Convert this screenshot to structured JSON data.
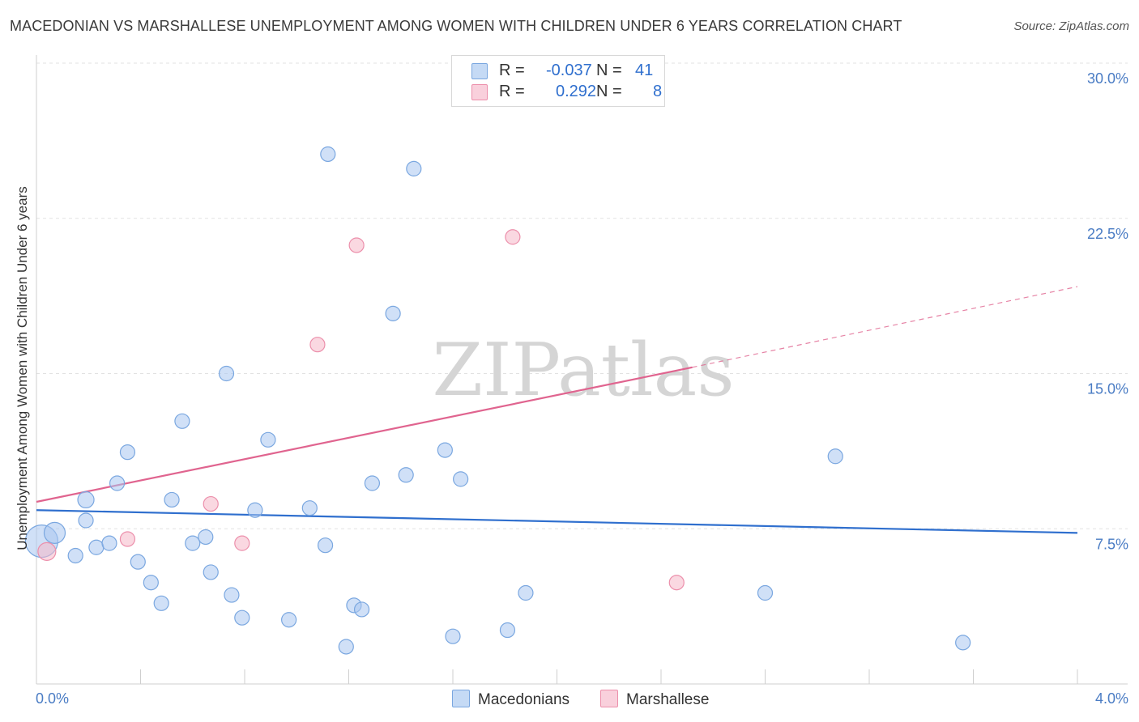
{
  "title": "MACEDONIAN VS MARSHALLESE UNEMPLOYMENT AMONG WOMEN WITH CHILDREN UNDER 6 YEARS CORRELATION CHART",
  "source": "Source: ZipAtlas.com",
  "watermark": "ZIPatlas",
  "legend": {
    "rows": [
      {
        "r_label": "R =",
        "r_value": "-0.037",
        "n_label": "N =",
        "n_value": "41",
        "color": "#a9c7f0"
      },
      {
        "r_label": "R =",
        "r_value": "0.292",
        "n_label": "N =",
        "n_value": "8",
        "color": "#f6b8c9"
      }
    ]
  },
  "bottom_legend": [
    {
      "label": "Macedonians",
      "color": "#a9c7f0"
    },
    {
      "label": "Marshallese",
      "color": "#f6b8c9"
    }
  ],
  "chart_data": {
    "type": "scatter",
    "title": "MACEDONIAN VS MARSHALLESE UNEMPLOYMENT AMONG WOMEN WITH CHILDREN UNDER 6 YEARS CORRELATION CHART",
    "xlabel": "",
    "ylabel": "Unemployment Among Women with Children Under 6 years",
    "xlim": [
      0,
      4.0
    ],
    "ylim": [
      0,
      30.0
    ],
    "x_ticks": [
      "0.0%",
      "4.0%"
    ],
    "y_ticks": [
      {
        "value": 7.5,
        "label": "7.5%"
      },
      {
        "value": 15.0,
        "label": "15.0%"
      },
      {
        "value": 22.5,
        "label": "22.5%"
      },
      {
        "value": 30.0,
        "label": "30.0%"
      }
    ],
    "grid": "horizontal-dashed",
    "series": [
      {
        "name": "Macedonians",
        "color": "#a9c7f0",
        "stroke": "#7aa7e0",
        "trend": {
          "x": [
            0.0,
            4.0
          ],
          "y": [
            8.4,
            7.3
          ],
          "color": "#2f6fce"
        },
        "points": [
          [
            0.02,
            6.9,
            20
          ],
          [
            0.07,
            7.3,
            13
          ],
          [
            0.19,
            8.9,
            10
          ],
          [
            0.15,
            6.2,
            9
          ],
          [
            0.19,
            7.9,
            9
          ],
          [
            0.23,
            6.6,
            9
          ],
          [
            0.28,
            6.8,
            9
          ],
          [
            0.31,
            9.7,
            9
          ],
          [
            0.35,
            11.2,
            9
          ],
          [
            0.39,
            5.9,
            9
          ],
          [
            0.44,
            4.9,
            9
          ],
          [
            0.48,
            3.9,
            9
          ],
          [
            0.52,
            8.9,
            9
          ],
          [
            0.56,
            12.7,
            9
          ],
          [
            0.6,
            6.8,
            9
          ],
          [
            0.65,
            7.1,
            9
          ],
          [
            0.67,
            5.4,
            9
          ],
          [
            0.73,
            15.0,
            9
          ],
          [
            0.75,
            4.3,
            9
          ],
          [
            0.79,
            3.2,
            9
          ],
          [
            0.84,
            8.4,
            9
          ],
          [
            0.89,
            11.8,
            9
          ],
          [
            0.97,
            3.1,
            9
          ],
          [
            1.05,
            8.5,
            9
          ],
          [
            1.11,
            6.7,
            9
          ],
          [
            1.12,
            25.6,
            9
          ],
          [
            1.19,
            1.8,
            9
          ],
          [
            1.22,
            3.8,
            9
          ],
          [
            1.25,
            3.6,
            9
          ],
          [
            1.29,
            9.7,
            9
          ],
          [
            1.37,
            17.9,
            9
          ],
          [
            1.42,
            10.1,
            9
          ],
          [
            1.45,
            24.9,
            9
          ],
          [
            1.57,
            11.3,
            9
          ],
          [
            1.6,
            2.3,
            9
          ],
          [
            1.63,
            9.9,
            9
          ],
          [
            1.81,
            2.6,
            9
          ],
          [
            1.88,
            4.4,
            9
          ],
          [
            2.8,
            4.4,
            9
          ],
          [
            3.07,
            11.0,
            9
          ],
          [
            3.56,
            2.0,
            9
          ]
        ]
      },
      {
        "name": "Marshallese",
        "color": "#f6b8c9",
        "stroke": "#ec8fab",
        "trend": {
          "x": [
            0.0,
            2.52
          ],
          "y": [
            8.8,
            15.3
          ],
          "dash_to": [
            4.0,
            19.2
          ],
          "color": "#e0648f"
        },
        "points": [
          [
            0.04,
            6.4,
            11
          ],
          [
            0.35,
            7.0,
            9
          ],
          [
            0.67,
            8.7,
            9
          ],
          [
            0.79,
            6.8,
            9
          ],
          [
            1.08,
            16.4,
            9
          ],
          [
            1.23,
            21.2,
            9
          ],
          [
            1.83,
            21.6,
            9
          ],
          [
            2.46,
            4.9,
            9
          ]
        ]
      }
    ]
  }
}
